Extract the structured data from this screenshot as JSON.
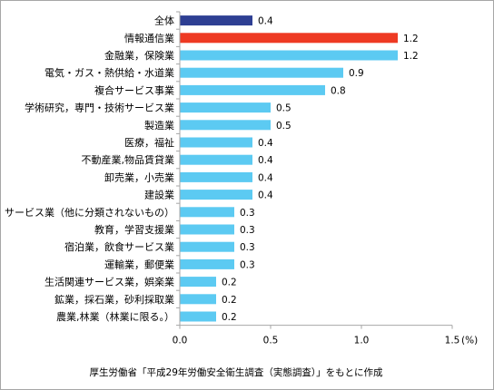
{
  "chart_data": {
    "type": "bar",
    "orientation": "horizontal",
    "categories": [
      "全体",
      "情報通信業",
      "金融業，保険業",
      "電気・ガス・熱供給・水道業",
      "複合サービス事業",
      "学術研究，専門・技術サービス業",
      "製造業",
      "医療，福祉",
      "不動産業,物品賃貸業",
      "卸売業，小売業",
      "建設業",
      "サービス業（他に分類されないもの）",
      "教育，学習支援業",
      "宿泊業，飲食サービス業",
      "運輸業，郵便業",
      "生活関連サービス業，娯楽業",
      "鉱業，採石業，砂利採取業",
      "農業,林業（林業に限る。）"
    ],
    "values": [
      0.4,
      1.2,
      1.2,
      0.9,
      0.8,
      0.5,
      0.5,
      0.4,
      0.4,
      0.4,
      0.4,
      0.3,
      0.3,
      0.3,
      0.3,
      0.2,
      0.2,
      0.2
    ],
    "value_labels": [
      "0.4",
      "1.2",
      "1.2",
      "0.9",
      "0.8",
      "0.5",
      "0.5",
      "0.4",
      "0.4",
      "0.4",
      "0.4",
      "0.3",
      "0.3",
      "0.3",
      "0.3",
      "0.2",
      "0.2",
      "0.2"
    ],
    "xticks": [
      0.0,
      0.5,
      1.0,
      1.5
    ],
    "xtick_labels": [
      "0.0",
      "0.5",
      "1.0",
      "1.5"
    ],
    "xunit": "(%)",
    "xlim": [
      0,
      1.5
    ],
    "grid": false,
    "title": "",
    "xlabel": "",
    "ylabel": "",
    "colors": {
      "total": "#2e3f93",
      "highlight": "#ee3a23",
      "default": "#5ccaf2",
      "axis": "#a6a6a6"
    },
    "source": "厚生労働省「平成29年労働安全衛生調査（実態調査）」をもとに作成"
  }
}
